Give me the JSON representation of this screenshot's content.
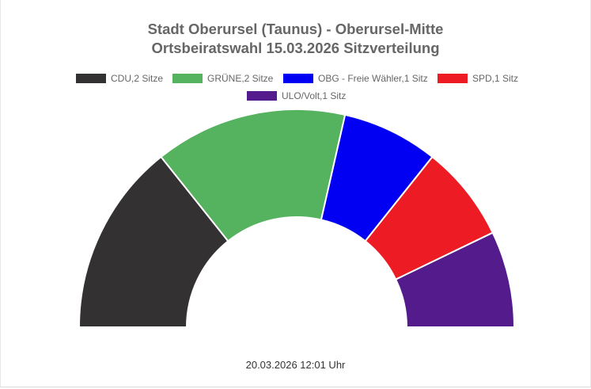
{
  "chart_data": {
    "type": "pie",
    "variant": "semicircle",
    "title": "Stadt Oberursel (Taunus) - Oberursel-Mitte",
    "subtitle": "Ortsbeiratswahl 15.03.2026 Sitzverteilung",
    "legend_placement": "top",
    "series": [
      {
        "name": "CDU,2 Sitze",
        "value": 2,
        "color": "#333131"
      },
      {
        "name": "GRÜNE,2 Sitze",
        "value": 2,
        "color": "#55b25f"
      },
      {
        "name": "OBG - Freie Wähler,1 Sitz",
        "value": 1,
        "color": "#0200f2"
      },
      {
        "name": "SPD,1 Sitz",
        "value": 1,
        "color": "#ed1c24"
      },
      {
        "name": "ULO/Volt,1 Sitz",
        "value": 1,
        "color": "#541b8c"
      }
    ]
  },
  "footer": {
    "timestamp": "20.03.2026 12:01 Uhr"
  }
}
